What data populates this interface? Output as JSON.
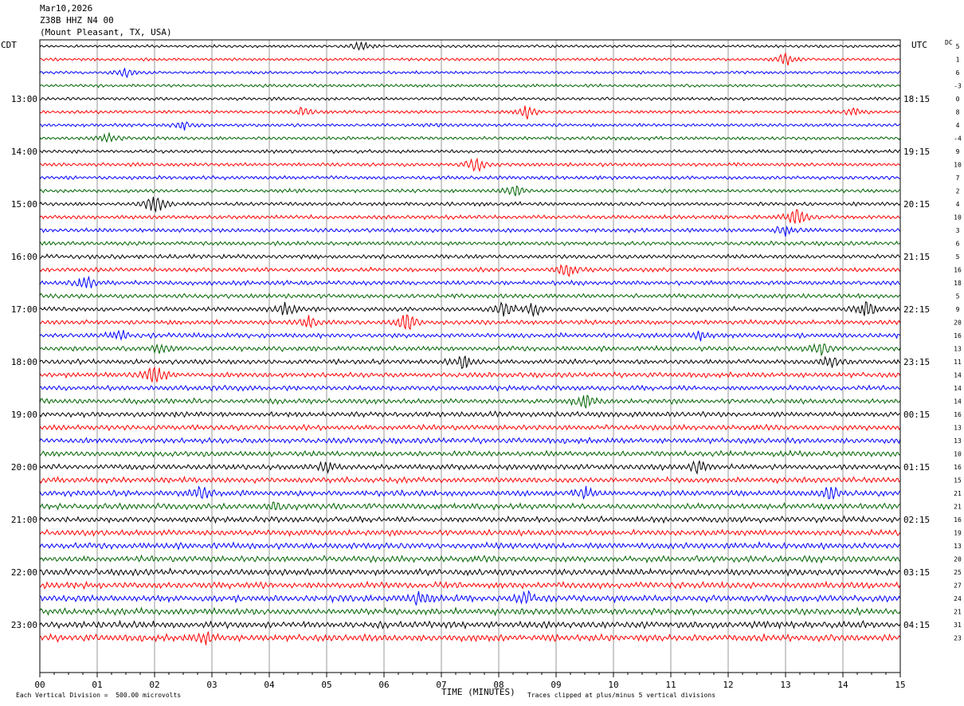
{
  "header": {
    "date": "Mar10,2026",
    "station": "Z38B HHZ N4 00",
    "location": "(Mount Pleasant, TX, USA)"
  },
  "left_axis_label": "CDT",
  "right_axis_label": "UTC",
  "dc_label": "DC",
  "footer": {
    "x_axis_title": "TIME (MINUTES)",
    "scale_note": "Each Vertical Division =  500.00 microvolts",
    "clip_note": "Traces clipped at plus/minus 5 vertical divisions"
  },
  "colors": {
    "black": "#000000",
    "red": "#ff0000",
    "blue": "#0000ff",
    "green": "#006400",
    "grid": "#808080"
  },
  "chart_data": {
    "type": "line",
    "title": "Z38B HHZ N4 00",
    "xlabel": "TIME (MINUTES)",
    "xlim": [
      0,
      15
    ],
    "x_ticks": [
      "00",
      "01",
      "02",
      "03",
      "04",
      "05",
      "06",
      "07",
      "08",
      "09",
      "10",
      "11",
      "12",
      "13",
      "14",
      "15"
    ],
    "traces_per_hour": 4,
    "trace_color_cycle": [
      "black",
      "red",
      "blue",
      "green"
    ],
    "left_hour_labels": [
      "13:00",
      "14:00",
      "15:00",
      "16:00",
      "17:00",
      "18:00",
      "19:00",
      "20:00",
      "21:00",
      "22:00",
      "23:00"
    ],
    "right_hour_labels": [
      "18:15",
      "19:15",
      "20:15",
      "21:15",
      "22:15",
      "23:15",
      "00:15",
      "01:15",
      "02:15",
      "03:15",
      "04:15"
    ],
    "dc_offsets": [
      "5",
      "1",
      "6",
      "-3",
      "0",
      "8",
      "4",
      "-4",
      "9",
      "10",
      "7",
      "2",
      "4",
      "10",
      "3",
      "6",
      "5",
      "16",
      "18",
      "5",
      "9",
      "20",
      "16",
      "13",
      "11",
      "14",
      "14",
      "14",
      "16",
      "13",
      "13",
      "10",
      "16",
      "15",
      "21",
      "21",
      "16",
      "19",
      "13",
      "20",
      "25",
      "27",
      "24",
      "21",
      "31",
      "23"
    ],
    "events": [
      {
        "trace": 0,
        "minute": 5.6,
        "amp": 1.2
      },
      {
        "trace": 1,
        "minute": 13.0,
        "amp": 1.4
      },
      {
        "trace": 2,
        "minute": 1.5,
        "amp": 0.9
      },
      {
        "trace": 5,
        "minute": 4.6,
        "amp": 1.0
      },
      {
        "trace": 5,
        "minute": 8.5,
        "amp": 1.6
      },
      {
        "trace": 5,
        "minute": 14.2,
        "amp": 1.0
      },
      {
        "trace": 6,
        "minute": 2.5,
        "amp": 0.9
      },
      {
        "trace": 7,
        "minute": 1.2,
        "amp": 1.0
      },
      {
        "trace": 9,
        "minute": 7.6,
        "amp": 1.8
      },
      {
        "trace": 11,
        "minute": 8.3,
        "amp": 1.4
      },
      {
        "trace": 12,
        "minute": 2.0,
        "amp": 2.6
      },
      {
        "trace": 13,
        "minute": 13.2,
        "amp": 2.4
      },
      {
        "trace": 14,
        "minute": 13.0,
        "amp": 1.3
      },
      {
        "trace": 17,
        "minute": 9.2,
        "amp": 2.0
      },
      {
        "trace": 18,
        "minute": 0.8,
        "amp": 1.5
      },
      {
        "trace": 20,
        "minute": 4.3,
        "amp": 1.6
      },
      {
        "trace": 20,
        "minute": 8.1,
        "amp": 1.8
      },
      {
        "trace": 20,
        "minute": 8.6,
        "amp": 1.5
      },
      {
        "trace": 20,
        "minute": 14.4,
        "amp": 2.0
      },
      {
        "trace": 21,
        "minute": 4.7,
        "amp": 1.5
      },
      {
        "trace": 21,
        "minute": 6.4,
        "amp": 2.3
      },
      {
        "trace": 22,
        "minute": 1.4,
        "amp": 1.0
      },
      {
        "trace": 22,
        "minute": 11.5,
        "amp": 1.0
      },
      {
        "trace": 23,
        "minute": 2.1,
        "amp": 1.2
      },
      {
        "trace": 23,
        "minute": 13.6,
        "amp": 1.5
      },
      {
        "trace": 24,
        "minute": 7.4,
        "amp": 1.6
      },
      {
        "trace": 24,
        "minute": 13.8,
        "amp": 1.3
      },
      {
        "trace": 25,
        "minute": 2.0,
        "amp": 2.8
      },
      {
        "trace": 27,
        "minute": 9.5,
        "amp": 1.5
      },
      {
        "trace": 32,
        "minute": 5.0,
        "amp": 1.1
      },
      {
        "trace": 32,
        "minute": 11.5,
        "amp": 1.4
      },
      {
        "trace": 34,
        "minute": 2.8,
        "amp": 1.5
      },
      {
        "trace": 34,
        "minute": 9.5,
        "amp": 1.1
      },
      {
        "trace": 34,
        "minute": 13.8,
        "amp": 1.4
      },
      {
        "trace": 35,
        "minute": 4.1,
        "amp": 0.9
      },
      {
        "trace": 42,
        "minute": 6.6,
        "amp": 1.4
      },
      {
        "trace": 42,
        "minute": 8.5,
        "amp": 1.4
      },
      {
        "trace": 45,
        "minute": 2.9,
        "amp": 1.2
      }
    ]
  }
}
